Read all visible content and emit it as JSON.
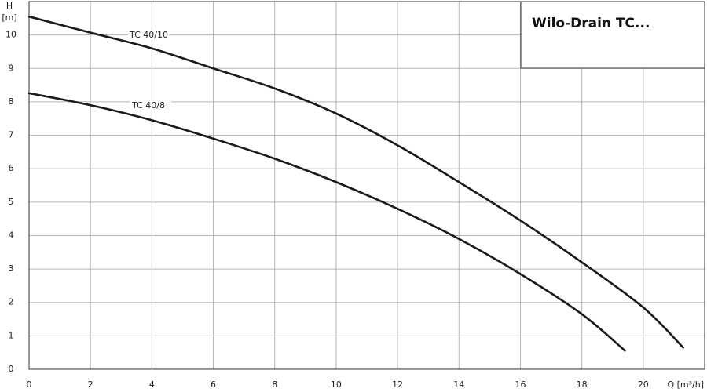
{
  "chart_data": {
    "type": "line",
    "title": "Wilo-Drain TC...",
    "x_label": "Q [m³/h]",
    "y_label": "H",
    "y_unit": "[m]",
    "xlim": [
      0,
      22
    ],
    "xticks": [
      0,
      2,
      4,
      6,
      8,
      10,
      12,
      14,
      16,
      18,
      20
    ],
    "ylim": [
      0,
      11
    ],
    "yticks": [
      0,
      1,
      2,
      3,
      4,
      5,
      6,
      7,
      8,
      9,
      10
    ],
    "grid": true,
    "series": [
      {
        "name": "TC 40/10",
        "color": "#1a1a1a",
        "x": [
          0,
          2,
          4,
          6,
          8,
          10,
          12,
          14,
          16,
          18,
          20,
          21.3
        ],
        "values": [
          10.55,
          10.07,
          9.6,
          9.0,
          8.4,
          7.65,
          6.7,
          5.6,
          4.45,
          3.2,
          1.85,
          0.65
        ]
      },
      {
        "name": "TC 40/8",
        "color": "#1a1a1a",
        "x": [
          0,
          2,
          4,
          6,
          8,
          10,
          12,
          14,
          16,
          18,
          19.4
        ],
        "values": [
          8.26,
          7.9,
          7.45,
          6.9,
          6.3,
          5.6,
          4.8,
          3.9,
          2.85,
          1.65,
          0.56
        ]
      }
    ]
  }
}
